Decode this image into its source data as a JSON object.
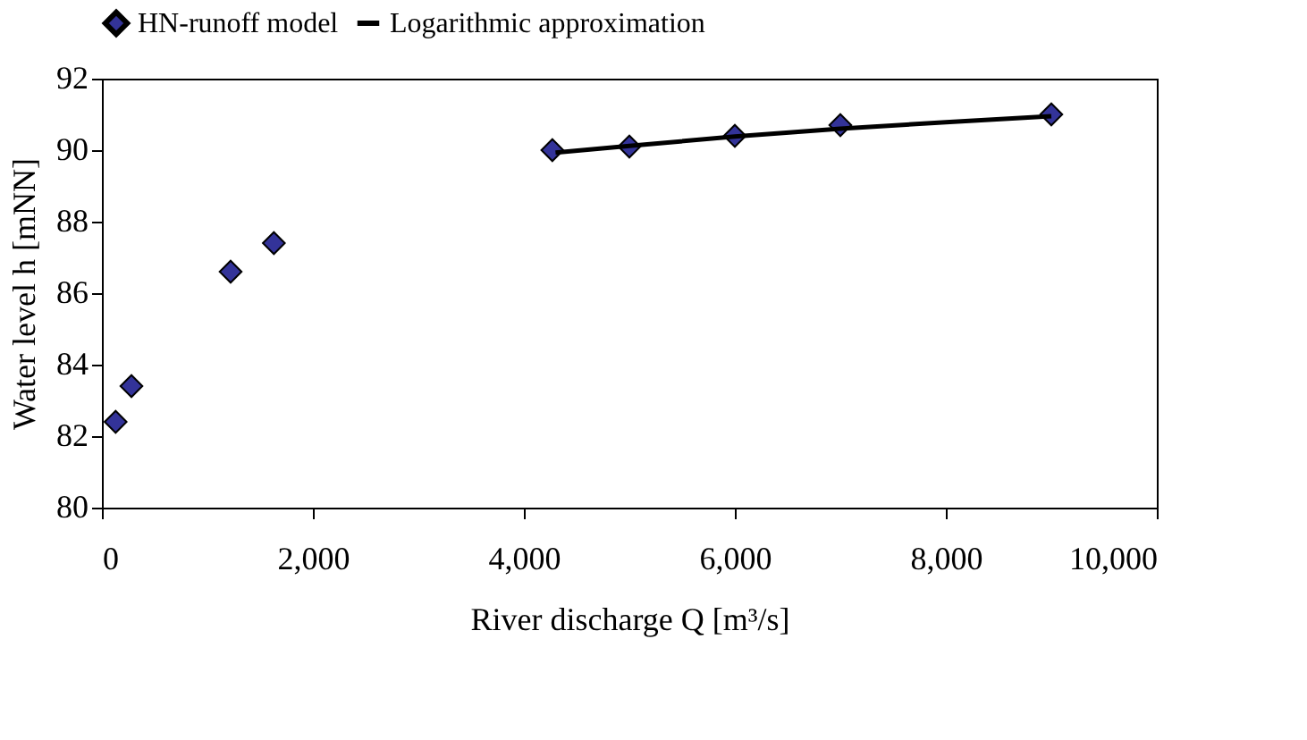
{
  "chart_data": {
    "type": "scatter",
    "xlabel": "River discharge Q [m³/s]",
    "ylabel": "Water level h [mNN]",
    "xlim": [
      0,
      10000
    ],
    "xticks": [
      0,
      {
        "value": 2000,
        "label": "2,000"
      },
      {
        "value": 4000,
        "label": "4,000"
      },
      {
        "value": 6000,
        "label": "6,000"
      },
      {
        "value": 8000,
        "label": "8,000"
      },
      {
        "value": 10000,
        "label": "10,000"
      }
    ],
    "ylim": [
      80,
      92
    ],
    "yticks": [
      80,
      82,
      84,
      86,
      88,
      90,
      92
    ],
    "grid": false,
    "legend": "top",
    "series": [
      {
        "name": "HN-runoff model",
        "marker": "diamond",
        "color": "#333399",
        "x": [
          130,
          280,
          1220,
          1630,
          4270,
          5000,
          6000,
          7000,
          9000
        ],
        "values": [
          82.4,
          83.4,
          86.6,
          87.4,
          90.0,
          90.1,
          90.4,
          90.7,
          91.0
        ]
      },
      {
        "name": "Logarithmic approximation",
        "type": "line",
        "marker": "none",
        "color": "#000000",
        "line_style": "solid",
        "x": [
          4300,
          5000,
          6000,
          7000,
          8000,
          9000
        ],
        "values": [
          89.93,
          90.12,
          90.38,
          90.6,
          90.78,
          90.95
        ]
      }
    ]
  }
}
